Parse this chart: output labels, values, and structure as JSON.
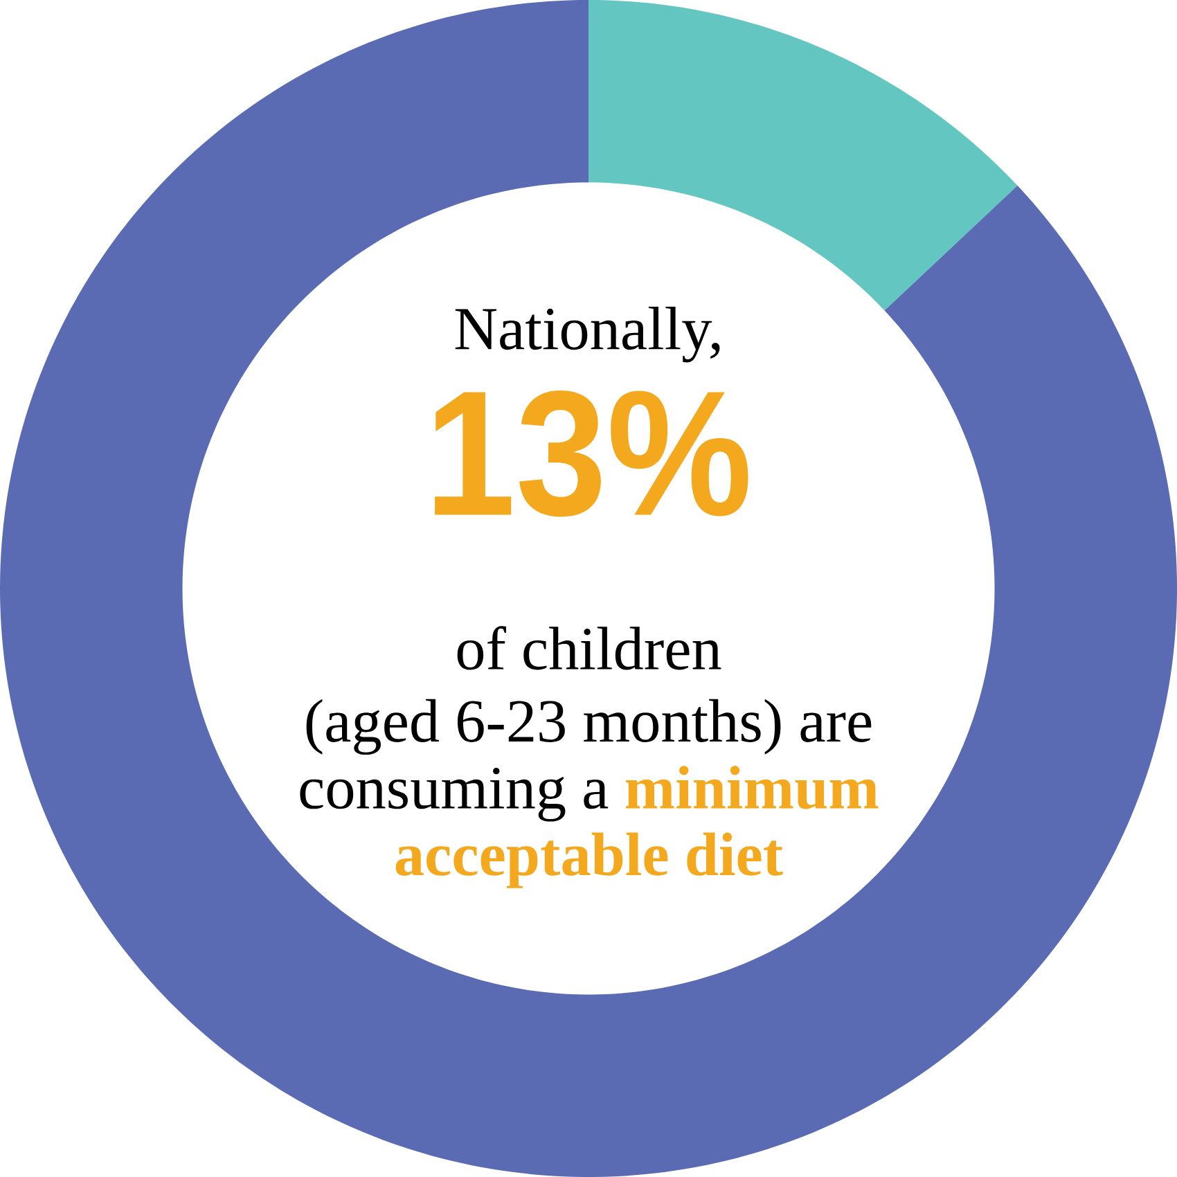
{
  "chart_data": {
    "type": "donut",
    "categories": [
      null,
      null
    ],
    "values": [
      13,
      87
    ],
    "colors": [
      "#63c6c1",
      "#5a6bb4"
    ],
    "value_labels": [
      "13%",
      null
    ],
    "annotations": [
      "Nationally,",
      "of children",
      "(aged 6-23 months) are",
      "consuming a",
      "minimum",
      "acceptable diet"
    ]
  }
}
